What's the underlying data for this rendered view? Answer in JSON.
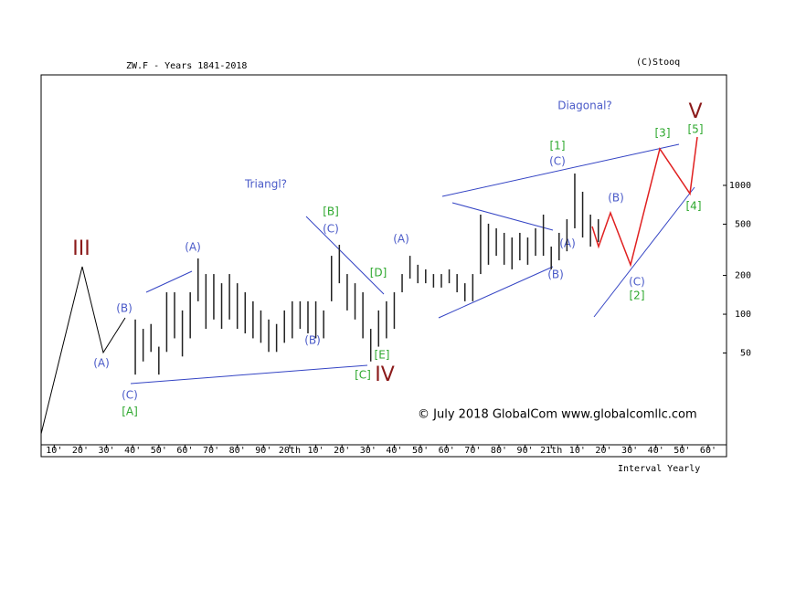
{
  "chart_data": {
    "type": "ohlc",
    "title": "ZW.F - Years 1841-2018",
    "source": "(C)Stooq",
    "interval": "Interval Yearly",
    "copyright": "© July 2018 GlobalCom www.globalcomllc.com",
    "x": [
      1841,
      1844,
      1847,
      1850,
      1853,
      1856,
      1859,
      1862,
      1865,
      1868,
      1871,
      1874,
      1877,
      1880,
      1883,
      1886,
      1889,
      1892,
      1895,
      1898,
      1901,
      1904,
      1907,
      1910,
      1913,
      1916,
      1919,
      1922,
      1925,
      1928,
      1931,
      1934,
      1937,
      1940,
      1943,
      1946,
      1949,
      1952,
      1955,
      1958,
      1961,
      1964,
      1967,
      1970,
      1973,
      1976,
      1979,
      1982,
      1985,
      1988,
      1991,
      1994,
      1997,
      2000,
      2003,
      2006,
      2009,
      2012,
      2015,
      2018
    ],
    "high": [
      91,
      77,
      84,
      56,
      148,
      148,
      107,
      148,
      271,
      205,
      205,
      174,
      205,
      174,
      148,
      126,
      107,
      91,
      84,
      107,
      126,
      126,
      126,
      126,
      107,
      284,
      346,
      205,
      174,
      148,
      77,
      107,
      126,
      148,
      205,
      284,
      242,
      223,
      205,
      205,
      223,
      205,
      174,
      205,
      593,
      504,
      464,
      428,
      394,
      428,
      394,
      464,
      593,
      335,
      428,
      546,
      1236,
      892,
      593,
      546
    ],
    "low": [
      34,
      43,
      51,
      34,
      51,
      65,
      47,
      65,
      126,
      77,
      91,
      77,
      91,
      77,
      71,
      65,
      60,
      51,
      51,
      60,
      65,
      77,
      71,
      65,
      65,
      126,
      174,
      107,
      91,
      65,
      43,
      56,
      65,
      77,
      148,
      189,
      174,
      174,
      161,
      161,
      174,
      148,
      126,
      126,
      205,
      242,
      284,
      242,
      223,
      262,
      242,
      284,
      284,
      223,
      262,
      308,
      464,
      394,
      335,
      363
    ],
    "color": "#222222",
    "xlim": [
      1805,
      2067
    ],
    "ylim": [
      9.7,
      7200
    ],
    "log_scale": true,
    "xticks": [
      {
        "value": 1810,
        "label": "10'"
      },
      {
        "value": 1820,
        "label": "20'"
      },
      {
        "value": 1830,
        "label": "30'"
      },
      {
        "value": 1840,
        "label": "40'"
      },
      {
        "value": 1850,
        "label": "50'"
      },
      {
        "value": 1860,
        "label": "60'"
      },
      {
        "value": 1870,
        "label": "70'"
      },
      {
        "value": 1880,
        "label": "80'"
      },
      {
        "value": 1890,
        "label": "90'"
      },
      {
        "value": 1900,
        "label": "20th"
      },
      {
        "value": 1910,
        "label": "10'"
      },
      {
        "value": 1920,
        "label": "20'"
      },
      {
        "value": 1930,
        "label": "30'"
      },
      {
        "value": 1940,
        "label": "40'"
      },
      {
        "value": 1950,
        "label": "50'"
      },
      {
        "value": 1960,
        "label": "60'"
      },
      {
        "value": 1970,
        "label": "70'"
      },
      {
        "value": 1980,
        "label": "80'"
      },
      {
        "value": 1990,
        "label": "90'"
      },
      {
        "value": 2000,
        "label": "21th"
      },
      {
        "value": 2010,
        "label": "10'"
      },
      {
        "value": 2020,
        "label": "20'"
      },
      {
        "value": 2030,
        "label": "30'"
      },
      {
        "value": 2040,
        "label": "40'"
      },
      {
        "value": 2050,
        "label": "50'"
      },
      {
        "value": 2060,
        "label": "60'"
      }
    ],
    "yticks": [
      50,
      100,
      200,
      500,
      1000
    ],
    "annotations": [
      "III",
      "(B)",
      "(A)",
      "(C)",
      "[A]",
      "(A)",
      "Triangl?",
      "[B]",
      "(C)",
      "(B)",
      "[D]",
      "[E]",
      "[C]",
      "IV",
      "(A)",
      "Diagonal?",
      "[1]",
      "(C)",
      "(A)",
      "(B)",
      "(B)",
      "(C)",
      "[2]",
      "[3]",
      "V",
      "[5]",
      "[4]"
    ]
  }
}
